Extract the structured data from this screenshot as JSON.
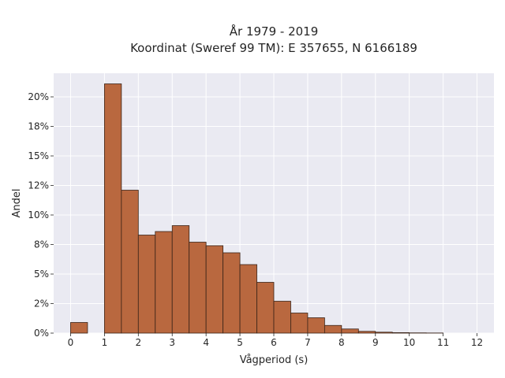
{
  "chart_data": {
    "type": "bar",
    "title_lines": [
      "År 1979 - 2019",
      "Koordinat (Sweref 99 TM): E 357655, N 6166189"
    ],
    "xlabel": "Vågperiod (s)",
    "ylabel": "Andel",
    "xlim": [
      -0.5,
      12.5
    ],
    "ylim": [
      0,
      0.22
    ],
    "x_ticks": [
      0,
      1,
      2,
      3,
      4,
      5,
      6,
      7,
      8,
      9,
      10,
      11,
      12
    ],
    "y_ticks": [
      {
        "value": 0.0,
        "label": "0%"
      },
      {
        "value": 0.025,
        "label": "2%"
      },
      {
        "value": 0.05,
        "label": "5%"
      },
      {
        "value": 0.075,
        "label": "8%"
      },
      {
        "value": 0.1,
        "label": "10%"
      },
      {
        "value": 0.125,
        "label": "12%"
      },
      {
        "value": 0.15,
        "label": "15%"
      },
      {
        "value": 0.175,
        "label": "18%"
      },
      {
        "value": 0.2,
        "label": "20%"
      }
    ],
    "bar_width": 0.5,
    "bins": [
      {
        "start": 0.0,
        "value": 0.009
      },
      {
        "start": 1.0,
        "value": 0.211
      },
      {
        "start": 1.5,
        "value": 0.121
      },
      {
        "start": 2.0,
        "value": 0.083
      },
      {
        "start": 2.5,
        "value": 0.086
      },
      {
        "start": 3.0,
        "value": 0.091
      },
      {
        "start": 3.5,
        "value": 0.077
      },
      {
        "start": 4.0,
        "value": 0.074
      },
      {
        "start": 4.5,
        "value": 0.068
      },
      {
        "start": 5.0,
        "value": 0.058
      },
      {
        "start": 5.5,
        "value": 0.043
      },
      {
        "start": 6.0,
        "value": 0.027
      },
      {
        "start": 6.5,
        "value": 0.017
      },
      {
        "start": 7.0,
        "value": 0.013
      },
      {
        "start": 7.5,
        "value": 0.0065
      },
      {
        "start": 8.0,
        "value": 0.0035
      },
      {
        "start": 8.5,
        "value": 0.0015
      },
      {
        "start": 9.0,
        "value": 0.0008
      },
      {
        "start": 9.5,
        "value": 0.0004
      },
      {
        "start": 10.0,
        "value": 0.0002
      },
      {
        "start": 10.5,
        "value": 0.0001
      }
    ],
    "grid": true,
    "colors": {
      "bar_fill": "#b9683f",
      "bar_edge": "#3a2418",
      "plot_background": "#eaeaf2",
      "grid": "#ffffff"
    }
  }
}
